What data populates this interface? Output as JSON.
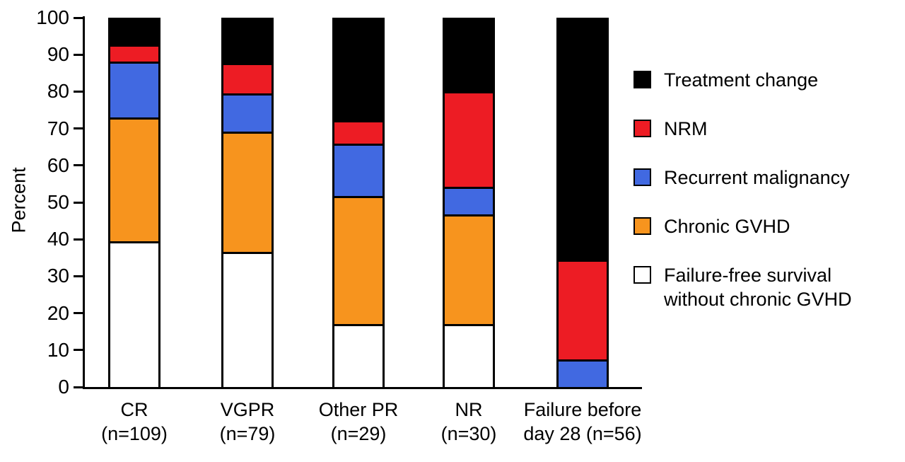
{
  "figure": {
    "background": "#ffffff"
  },
  "chart_data": {
    "type": "bar",
    "stacked": true,
    "orientation": "vertical",
    "title": "",
    "xlabel": "",
    "ylabel": "Percent",
    "ylim": [
      0,
      100
    ],
    "yticks": [
      0,
      10,
      20,
      30,
      40,
      50,
      60,
      70,
      80,
      90,
      100
    ],
    "grid": false,
    "legend_position": "right",
    "categories": [
      {
        "lines": [
          "CR",
          "(n=109)"
        ]
      },
      {
        "lines": [
          "VGPR",
          "(n=79)"
        ]
      },
      {
        "lines": [
          "Other PR",
          "(n=29)"
        ]
      },
      {
        "lines": [
          "NR",
          "(n=30)"
        ]
      },
      {
        "lines": [
          "Failure before",
          "day 28 (n=56)"
        ]
      }
    ],
    "series": [
      {
        "name": "Failure-free survival without chronic GVHD",
        "legend_lines": [
          "Failure-free survival",
          "without chronic GVHD"
        ],
        "color": "#ffffff",
        "values": [
          40,
          37,
          17,
          17,
          0
        ]
      },
      {
        "name": "Chronic GVHD",
        "legend_lines": [
          "Chronic GVHD"
        ],
        "color": "#f7941e",
        "values": [
          34,
          33,
          35,
          30,
          0
        ]
      },
      {
        "name": "Recurrent malignancy",
        "legend_lines": [
          "Recurrent malignancy"
        ],
        "color": "#4169e1",
        "values": [
          15,
          10,
          14,
          7,
          7
        ]
      },
      {
        "name": "NRM",
        "legend_lines": [
          "NRM"
        ],
        "color": "#ed1c24",
        "values": [
          4,
          8,
          6,
          26,
          27
        ]
      },
      {
        "name": "Treatment change",
        "legend_lines": [
          "Treatment change"
        ],
        "color": "#000000",
        "values": [
          7,
          12,
          28,
          20,
          66
        ]
      }
    ],
    "legend_order": [
      "Treatment change",
      "NRM",
      "Recurrent malignancy",
      "Chronic GVHD",
      "Failure-free survival without chronic GVHD"
    ]
  }
}
